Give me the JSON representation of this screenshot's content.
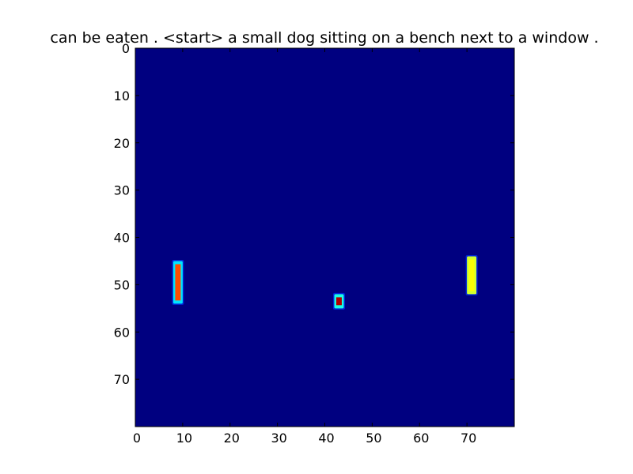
{
  "chart_data": {
    "type": "heatmap",
    "title": "can be eaten . <start> a small dog sitting on a bench next to a window .",
    "xlabel": "",
    "ylabel": "",
    "xlim": [
      0,
      80
    ],
    "ylim": [
      80,
      0
    ],
    "x_ticks": [
      0,
      10,
      20,
      30,
      40,
      50,
      60,
      70
    ],
    "y_ticks": [
      0,
      10,
      20,
      30,
      40,
      50,
      60,
      70
    ],
    "colormap": "jet",
    "background_value": 0.0,
    "grid": false,
    "hotspots": [
      {
        "x": [
          8,
          10
        ],
        "y": [
          45,
          54
        ],
        "peak": 0.8,
        "edge": 0.35
      },
      {
        "x": [
          42,
          44
        ],
        "y": [
          52,
          55
        ],
        "peak": 0.95,
        "edge": 0.4
      },
      {
        "x": [
          70,
          72
        ],
        "y": [
          44,
          52
        ],
        "peak": 0.62,
        "edge": 0.58
      }
    ],
    "colors": {
      "background": "#00007f",
      "frame": "#000000"
    }
  }
}
